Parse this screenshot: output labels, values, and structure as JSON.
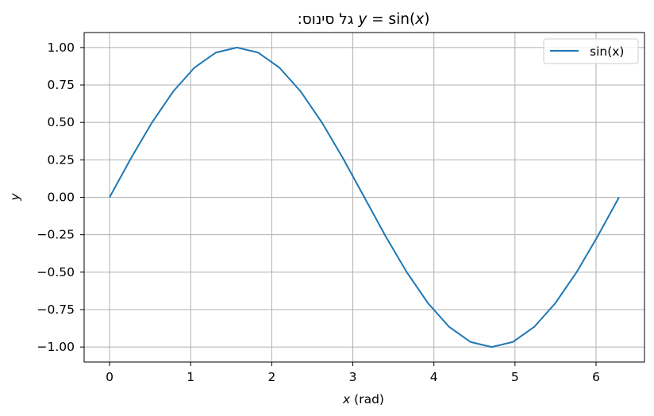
{
  "chart_data": {
    "type": "line",
    "title": "גל סינוס: y = sin(x)",
    "title_parts": {
      "hebrew": "גל סינוס:",
      "y": "y",
      "eq": " = sin(",
      "x": "x",
      "close": ")"
    },
    "xlabel": "x (rad)",
    "xlabel_parts": {
      "var": "x",
      "unit": " (rad)"
    },
    "ylabel": "y",
    "xlim": [
      -0.314,
      6.597
    ],
    "ylim": [
      -1.1,
      1.1
    ],
    "xticks": [
      0,
      1,
      2,
      3,
      4,
      5,
      6
    ],
    "yticks": [
      1.0,
      0.75,
      0.5,
      0.25,
      0.0,
      -0.25,
      -0.5,
      -0.75,
      -1.0
    ],
    "xtick_labels": [
      "0",
      "1",
      "2",
      "3",
      "4",
      "5",
      "6"
    ],
    "ytick_labels": [
      "1.00",
      "0.75",
      "0.50",
      "0.25",
      "0.00",
      "−0.25",
      "−0.50",
      "−0.75",
      "−1.00"
    ],
    "grid": true,
    "legend": {
      "position": "top-right",
      "entries": [
        "sin(x)"
      ]
    },
    "series": [
      {
        "name": "sin(x)",
        "color": "#1f77b4",
        "x": [
          0.0,
          0.262,
          0.524,
          0.785,
          1.047,
          1.309,
          1.571,
          1.833,
          2.094,
          2.356,
          2.618,
          2.88,
          3.142,
          3.403,
          3.665,
          3.927,
          4.189,
          4.451,
          4.712,
          4.974,
          5.236,
          5.498,
          5.76,
          6.021,
          6.283
        ],
        "y": [
          0.0,
          0.259,
          0.5,
          0.707,
          0.866,
          0.966,
          1.0,
          0.966,
          0.866,
          0.707,
          0.5,
          0.259,
          0.0,
          -0.259,
          -0.5,
          -0.707,
          -0.866,
          -0.966,
          -1.0,
          -0.966,
          -0.866,
          -0.707,
          -0.5,
          -0.259,
          0.0
        ]
      }
    ]
  }
}
